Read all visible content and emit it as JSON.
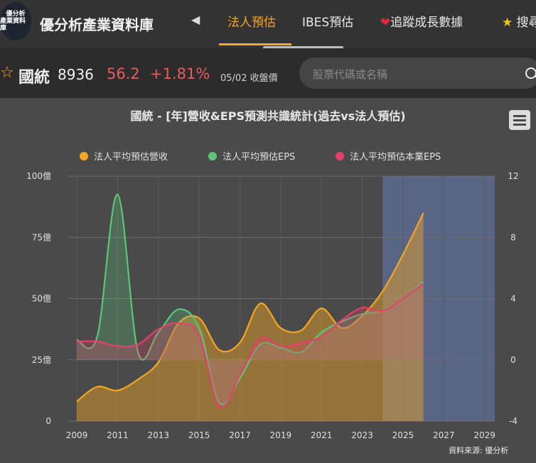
{
  "app": {
    "brand": "優分析產業資料庫",
    "logo_line1": "優分析",
    "logo_line2": "產業資料庫",
    "tabs": [
      {
        "label": "法人預估"
      },
      {
        "label": "IBES預估"
      },
      {
        "label": "追蹤成長數據",
        "icon": "heart-icon"
      },
      {
        "label": "搜尋",
        "icon": "star-icon"
      }
    ]
  },
  "stock": {
    "name": "國統",
    "code": "8936",
    "price": "56.2",
    "change": "+1.81%",
    "date_label": "05/02 收盤價"
  },
  "search": {
    "placeholder": "股票代碼或名稱"
  },
  "colors": {
    "revenue": "#f5a623",
    "eps": "#5bc57a",
    "core_eps": "#e83e6c",
    "accent": "#f5a623",
    "forecast_band": "#5c6a8e"
  },
  "chart_data": {
    "type": "line",
    "title": "國統 - [年]營收&EPS預測共識統計(過去vs法人預估)",
    "source": "資料來源: 優分析",
    "x_ticks": [
      "2009",
      "2011",
      "2013",
      "2015",
      "2017",
      "2019",
      "2021",
      "2023",
      "2025",
      "2027",
      "2029"
    ],
    "xlim": [
      2009,
      2029.5
    ],
    "y_left": {
      "ticks": [
        "0",
        "25億",
        "50億",
        "75億",
        "100億"
      ],
      "ylim": [
        0,
        100
      ]
    },
    "y_right": {
      "ticks": [
        "-4",
        "0",
        "4",
        "8",
        "12"
      ],
      "ylim": [
        -4,
        12
      ]
    },
    "forecast_band": {
      "from": 2024,
      "to": 2029.5
    },
    "legend_placement": "top",
    "series": [
      {
        "name": "法人平均預估營收",
        "axis": "left",
        "color": "#f5a623",
        "points": [
          [
            2009,
            8
          ],
          [
            2010,
            14
          ],
          [
            2011,
            12.5
          ],
          [
            2012,
            17
          ],
          [
            2013,
            24
          ],
          [
            2014,
            40
          ],
          [
            2015,
            42
          ],
          [
            2016,
            29
          ],
          [
            2017,
            32
          ],
          [
            2018,
            48
          ],
          [
            2019,
            38
          ],
          [
            2020,
            37
          ],
          [
            2021,
            46
          ],
          [
            2022,
            38
          ],
          [
            2023,
            43
          ],
          [
            2024,
            53
          ],
          [
            2025,
            68
          ],
          [
            2026,
            85
          ]
        ]
      },
      {
        "name": "法人平均預估EPS",
        "axis": "right",
        "color": "#5bc57a",
        "points": [
          [
            2009,
            1.3
          ],
          [
            2010,
            1.5
          ],
          [
            2011,
            10.8
          ],
          [
            2012,
            0.5
          ],
          [
            2013,
            1.8
          ],
          [
            2014,
            3.3
          ],
          [
            2015,
            2.1
          ],
          [
            2016,
            -2.8
          ],
          [
            2017,
            -1.2
          ],
          [
            2018,
            1.0
          ],
          [
            2019,
            0.8
          ],
          [
            2020,
            0.5
          ],
          [
            2021,
            1.8
          ],
          [
            2022,
            2.5
          ],
          [
            2023,
            3.0
          ],
          [
            2024,
            3.2
          ],
          [
            2025,
            4.0
          ],
          [
            2026,
            5.1
          ]
        ]
      },
      {
        "name": "法人平均預估本業EPS",
        "axis": "right",
        "color": "#e83e6c",
        "points": [
          [
            2009,
            1.2
          ],
          [
            2010,
            1.2
          ],
          [
            2011,
            0.9
          ],
          [
            2012,
            1.0
          ],
          [
            2013,
            2.0
          ],
          [
            2014,
            2.4
          ],
          [
            2015,
            1.6
          ],
          [
            2016,
            -3.1
          ],
          [
            2017,
            -1.0
          ],
          [
            2018,
            1.4
          ],
          [
            2019,
            0.9
          ],
          [
            2020,
            1.1
          ],
          [
            2021,
            1.5
          ],
          [
            2022,
            2.6
          ],
          [
            2023,
            3.4
          ],
          [
            2024,
            3.2
          ],
          [
            2025,
            4.0
          ],
          [
            2026,
            5.0
          ]
        ]
      }
    ]
  }
}
